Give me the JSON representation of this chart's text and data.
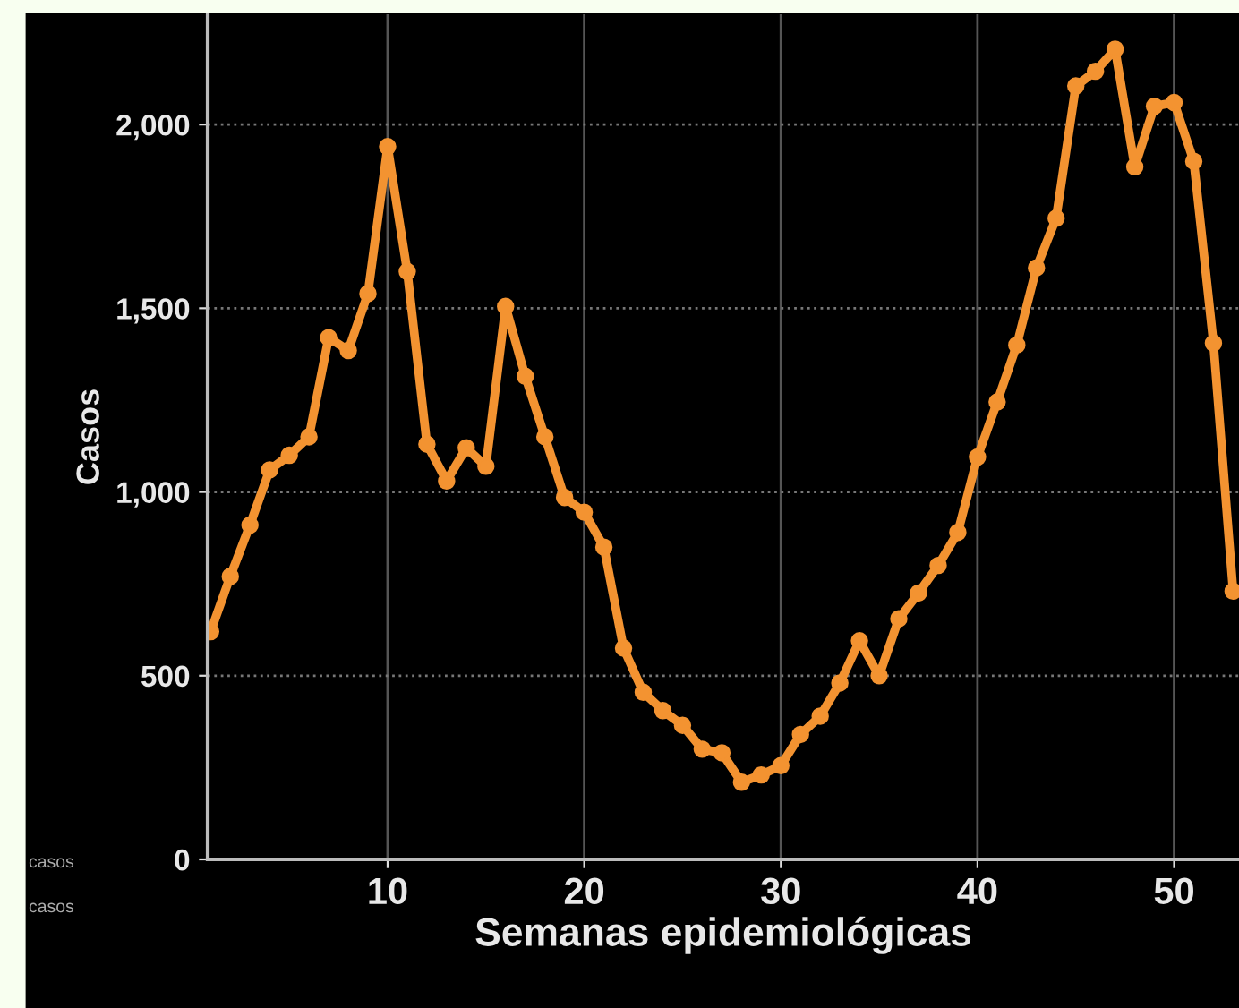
{
  "chart_data": {
    "type": "line",
    "xlabel": "Semanas epidemiológicas",
    "ylabel": "Casos",
    "x": [
      1,
      2,
      3,
      4,
      5,
      6,
      7,
      8,
      9,
      10,
      11,
      12,
      13,
      14,
      15,
      16,
      17,
      18,
      19,
      20,
      21,
      22,
      23,
      24,
      25,
      26,
      27,
      28,
      29,
      30,
      31,
      32,
      33,
      34,
      35,
      36,
      37,
      38,
      39,
      40,
      41,
      42,
      43,
      44,
      45,
      46,
      47,
      48,
      49,
      50,
      51,
      52,
      53
    ],
    "series": [
      {
        "color": "#f39331",
        "values": [
          620,
          770,
          910,
          1060,
          1100,
          1150,
          1420,
          1385,
          1540,
          1940,
          1600,
          1130,
          1030,
          1120,
          1070,
          1505,
          1315,
          1150,
          985,
          945,
          850,
          575,
          455,
          405,
          365,
          300,
          290,
          210,
          230,
          255,
          340,
          390,
          480,
          595,
          500,
          655,
          725,
          800,
          890,
          1095,
          1245,
          1400,
          1610,
          1745,
          2105,
          2145,
          2205,
          1885,
          2050,
          2060,
          1900,
          1405,
          730
        ]
      }
    ],
    "xlim": [
      0.85,
      53.3
    ],
    "ylim": [
      0,
      2300
    ],
    "xticks": [
      10,
      20,
      30,
      40,
      50
    ],
    "yticks": [
      0,
      {
        "value": 500,
        "label": "500"
      },
      {
        "value": 1000,
        "label": "1,000"
      },
      {
        "value": 1500,
        "label": "1,500"
      },
      {
        "value": 2000,
        "label": "2,000"
      }
    ],
    "grid": true,
    "marker": "circle",
    "line_style": "solid",
    "annotations": [
      "casos",
      "casos"
    ]
  }
}
